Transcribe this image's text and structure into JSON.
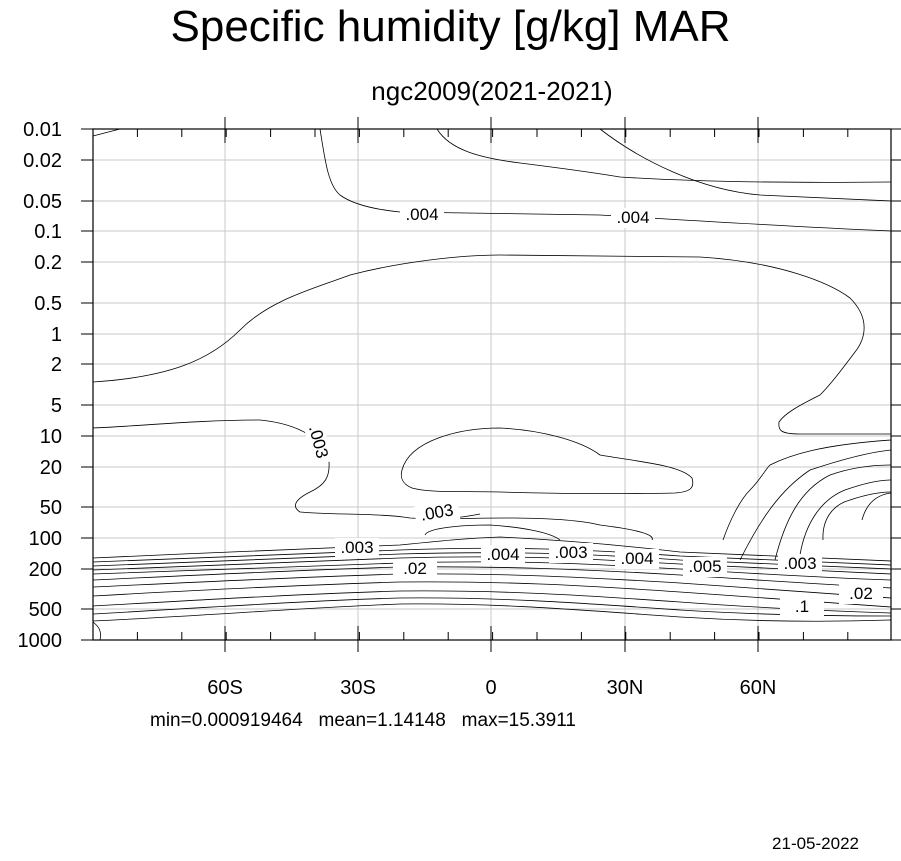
{
  "chart_data": {
    "type": "contour",
    "title": "Specific humidity [g/kg] MAR",
    "subtitle": "ngc2009(2021-2021)",
    "x_ticks": [
      "60S",
      "30S",
      "0",
      "30N",
      "60N"
    ],
    "y_ticks": [
      "0.01",
      "0.02",
      "0.05",
      "0.1",
      "0.2",
      "0.5",
      "1",
      "2",
      "5",
      "10",
      "20",
      "50",
      "100",
      "200",
      "500",
      "1000"
    ],
    "y_scale": "log",
    "y_inverted": true,
    "grid": true,
    "contour_labels": [
      ".004",
      ".004",
      ".003",
      ".003",
      ".003",
      ".004",
      ".003",
      ".004",
      ".005",
      ".003",
      ".02",
      ".02",
      ".1"
    ],
    "stats": {
      "min": "min=0.000919464",
      "mean": "mean=1.14148",
      "max": "max=15.3911"
    }
  },
  "footer": {
    "date": "21-05-2022"
  }
}
